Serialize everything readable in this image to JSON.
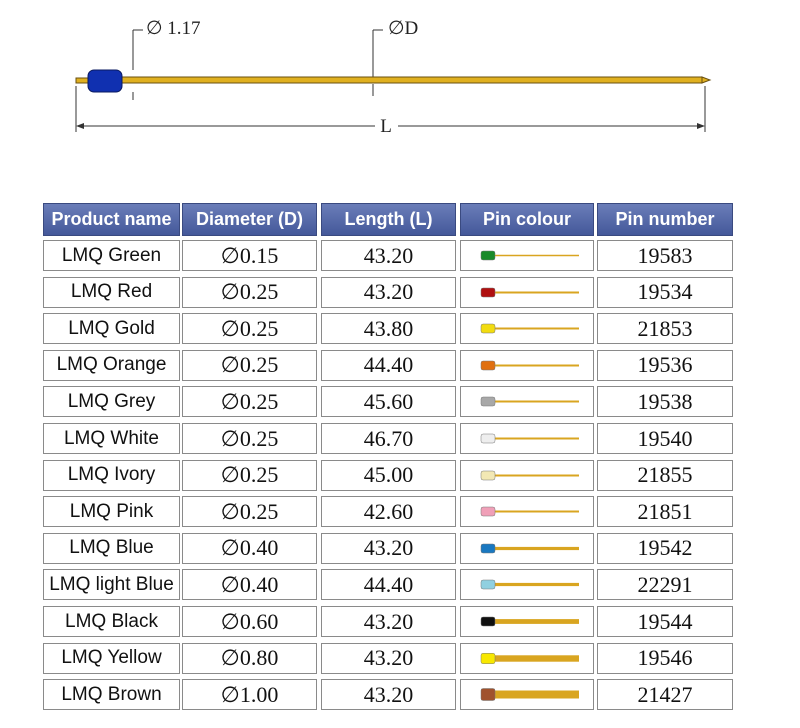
{
  "diagram": {
    "head_diameter": "∅ 1.17",
    "shaft_diameter": "∅D",
    "length": "L"
  },
  "table": {
    "header": [
      "Product name",
      "Diameter (D)",
      "Length (L)",
      "Pin colour",
      "Pin number"
    ],
    "rows": [
      {
        "name": "LMQ Green",
        "diameter": "∅0.15",
        "length": "43.20",
        "pin_color": "#1a8a2a",
        "pin_number": "19583"
      },
      {
        "name": "LMQ Red",
        "diameter": "∅0.25",
        "length": "43.20",
        "pin_color": "#b01010",
        "pin_number": "19534"
      },
      {
        "name": "LMQ Gold",
        "diameter": "∅0.25",
        "length": "43.80",
        "pin_color": "#f2dc10",
        "pin_number": "21853"
      },
      {
        "name": "LMQ Orange",
        "diameter": "∅0.25",
        "length": "44.40",
        "pin_color": "#e07010",
        "pin_number": "19536"
      },
      {
        "name": "LMQ Grey",
        "diameter": "∅0.25",
        "length": "45.60",
        "pin_color": "#a8a8a8",
        "pin_number": "19538"
      },
      {
        "name": "LMQ White",
        "diameter": "∅0.25",
        "length": "46.70",
        "pin_color": "#eeeeee",
        "pin_number": "19540"
      },
      {
        "name": "LMQ Ivory",
        "diameter": "∅0.25",
        "length": "45.00",
        "pin_color": "#f2e8b4",
        "pin_number": "21855"
      },
      {
        "name": "LMQ Pink",
        "diameter": "∅0.25",
        "length": "42.60",
        "pin_color": "#f0a0b8",
        "pin_number": "21851"
      },
      {
        "name": "LMQ Blue",
        "diameter": "∅0.40",
        "length": "43.20",
        "pin_color": "#1a78c0",
        "pin_number": "19542"
      },
      {
        "name": "LMQ light Blue",
        "diameter": "∅0.40",
        "length": "44.40",
        "pin_color": "#90d0e0",
        "pin_number": "22291"
      },
      {
        "name": "LMQ Black",
        "diameter": "∅0.60",
        "length": "43.20",
        "pin_color": "#101010",
        "pin_number": "19544"
      },
      {
        "name": "LMQ Yellow",
        "diameter": "∅0.80",
        "length": "43.20",
        "pin_color": "#f8e800",
        "pin_number": "19546"
      },
      {
        "name": "LMQ Brown",
        "diameter": "∅1.00",
        "length": "43.20",
        "pin_color": "#a0522d",
        "pin_number": "21427"
      }
    ]
  }
}
